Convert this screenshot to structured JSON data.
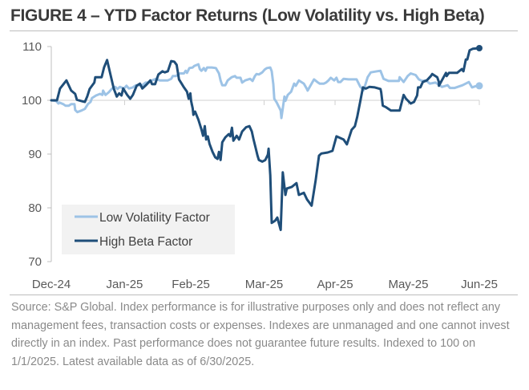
{
  "figure": {
    "title": "FIGURE 4 – YTD Factor Returns (Low Volatility vs. High Beta)",
    "source": "Source: S&P Global. Index performance is for illustrative purposes only and does not reflect any management fees, transaction costs or expenses. Indexes are unmanaged and one cannot invest directly in an index. Past performance does not guarantee future results. Indexed to 100 on 1/1/2025. Latest available data as of 6/30/2025."
  },
  "chart_data": {
    "type": "line",
    "title": "FIGURE 4 – YTD Factor Returns (Low Volatility vs. High Beta)",
    "xlabel": "",
    "ylabel": "",
    "x_unit": "days since 2024-12-31",
    "xlim": [
      0,
      181
    ],
    "ylim": [
      70,
      110
    ],
    "y_ticks": [
      70,
      80,
      90,
      100,
      110
    ],
    "x_ticks": [
      {
        "day": 0,
        "label": "Dec-24"
      },
      {
        "day": 31,
        "label": "Jan-25"
      },
      {
        "day": 59,
        "label": "Feb-25"
      },
      {
        "day": 90,
        "label": "Mar-25"
      },
      {
        "day": 120,
        "label": "Apr-25"
      },
      {
        "day": 151,
        "label": "May-25"
      },
      {
        "day": 181,
        "label": "Jun-25"
      }
    ],
    "baseline": 100,
    "grid": false,
    "legend_position": "bottom-left",
    "series": [
      {
        "name": "Low Volatility Factor",
        "color": "#9dc3e6",
        "end_marker": true,
        "points": [
          [
            0,
            100.0
          ],
          [
            2,
            99.9
          ],
          [
            3,
            99.4
          ],
          [
            3.4,
            99.6
          ],
          [
            5,
            99.3
          ],
          [
            6,
            99.0
          ],
          [
            7.4,
            99.0
          ],
          [
            8.4,
            99.3
          ],
          [
            9.8,
            99.3
          ],
          [
            10.1,
            98.2
          ],
          [
            11,
            97.8
          ],
          [
            12.8,
            98.1
          ],
          [
            14.2,
            98.4
          ],
          [
            15.5,
            99.3
          ],
          [
            16.6,
            99.7
          ],
          [
            17.2,
            100.4
          ],
          [
            18.9,
            100.9
          ],
          [
            20.6,
            101.2
          ],
          [
            21.6,
            101.0
          ],
          [
            21.9,
            101.8
          ],
          [
            22.9,
            101.0
          ],
          [
            24.3,
            101.5
          ],
          [
            25.7,
            102.2
          ],
          [
            27,
            102.5
          ],
          [
            28,
            102.1
          ],
          [
            29,
            102.5
          ],
          [
            30.7,
            102.2
          ],
          [
            31.8,
            102.7
          ],
          [
            32.8,
            102.2
          ],
          [
            34.5,
            102.4
          ],
          [
            35.8,
            102.8
          ],
          [
            36.8,
            102.8
          ],
          [
            38.5,
            102.8
          ],
          [
            39.9,
            103.3
          ],
          [
            41.2,
            103.3
          ],
          [
            42.6,
            103.7
          ],
          [
            44.3,
            104.0
          ],
          [
            45.9,
            103.7
          ],
          [
            47.6,
            103.7
          ],
          [
            49.3,
            103.7
          ],
          [
            50.7,
            104.0
          ],
          [
            51.4,
            104.5
          ],
          [
            52.7,
            104.5
          ],
          [
            54.4,
            105.0
          ],
          [
            56.1,
            105.0
          ],
          [
            56.8,
            105.5
          ],
          [
            57.4,
            105.1
          ],
          [
            58.4,
            106.0
          ],
          [
            59.8,
            106.1
          ],
          [
            60.5,
            106.4
          ],
          [
            62.2,
            106.7
          ],
          [
            62.8,
            105.8
          ],
          [
            63.5,
            105.5
          ],
          [
            64.5,
            106.0
          ],
          [
            65.2,
            105.5
          ],
          [
            65.9,
            106.1
          ],
          [
            67.9,
            106.1
          ],
          [
            69.6,
            106.0
          ],
          [
            70.9,
            105.0
          ],
          [
            71.6,
            103.7
          ],
          [
            72.3,
            102.8
          ],
          [
            73.6,
            102.8
          ],
          [
            74.6,
            103.7
          ],
          [
            76.3,
            104.3
          ],
          [
            77.7,
            104.5
          ],
          [
            78.4,
            104.2
          ],
          [
            80,
            104.2
          ],
          [
            80.7,
            103.3
          ],
          [
            82,
            103.7
          ],
          [
            84.1,
            104.0
          ],
          [
            85.1,
            103.6
          ],
          [
            86.1,
            104.5
          ],
          [
            86.8,
            104.9
          ],
          [
            87.8,
            104.8
          ],
          [
            89.2,
            105.2
          ],
          [
            90.2,
            105.7
          ],
          [
            91.2,
            106.0
          ],
          [
            92.6,
            106.1
          ],
          [
            93.2,
            105.4
          ],
          [
            93.9,
            103.0
          ],
          [
            94.3,
            100.3
          ],
          [
            95.3,
            99.6
          ],
          [
            97,
            98.1
          ],
          [
            97.3,
            96.7
          ],
          [
            98.6,
            100.7
          ],
          [
            99,
            99.9
          ],
          [
            100,
            101.0
          ],
          [
            101.4,
            101.6
          ],
          [
            102.7,
            103.1
          ],
          [
            103.4,
            102.7
          ],
          [
            104.7,
            103.7
          ],
          [
            106.8,
            103.1
          ],
          [
            108.1,
            102.1
          ],
          [
            108.4,
            101.8
          ],
          [
            111.1,
            103.9
          ],
          [
            112.5,
            103.4
          ],
          [
            113.5,
            103.1
          ],
          [
            115.2,
            103.1
          ],
          [
            116.2,
            103.3
          ],
          [
            117.2,
            103.7
          ],
          [
            118.2,
            104.2
          ],
          [
            119.6,
            103.7
          ],
          [
            120.6,
            104.2
          ],
          [
            121.3,
            103.4
          ],
          [
            122.3,
            103.4
          ],
          [
            123.6,
            104.0
          ],
          [
            125.7,
            103.9
          ],
          [
            127,
            103.9
          ],
          [
            129.1,
            103.9
          ],
          [
            130.7,
            102.5
          ],
          [
            132.1,
            101.9
          ],
          [
            133.8,
            104.3
          ],
          [
            135.1,
            105.2
          ],
          [
            137.8,
            105.4
          ],
          [
            139.2,
            105.5
          ],
          [
            140.5,
            104.0
          ],
          [
            142.6,
            103.6
          ],
          [
            145.3,
            103.6
          ],
          [
            147,
            103.6
          ],
          [
            147.3,
            104.3
          ],
          [
            149,
            103.4
          ],
          [
            150.7,
            104.5
          ],
          [
            152,
            105.0
          ],
          [
            154.1,
            104.7
          ],
          [
            155.4,
            103.9
          ],
          [
            156.8,
            103.6
          ],
          [
            158.4,
            103.7
          ],
          [
            160.1,
            103.1
          ],
          [
            162.5,
            103.3
          ],
          [
            165.2,
            102.5
          ],
          [
            167.6,
            102.8
          ],
          [
            168.6,
            102.3
          ],
          [
            170.6,
            102.3
          ],
          [
            173.9,
            102.8
          ],
          [
            176.6,
            103.4
          ],
          [
            177.9,
            102.4
          ],
          [
            179.9,
            102.7
          ],
          [
            181,
            102.7
          ]
        ]
      },
      {
        "name": "High Beta Factor",
        "color": "#1f4e79",
        "end_marker": true,
        "points": [
          [
            0,
            100.0
          ],
          [
            2.4,
            100.0
          ],
          [
            3.7,
            102.2
          ],
          [
            6.4,
            103.7
          ],
          [
            8.4,
            101.8
          ],
          [
            10.1,
            101.2
          ],
          [
            10.8,
            100.1
          ],
          [
            13.2,
            99.8
          ],
          [
            14.2,
            99.7
          ],
          [
            15.2,
            100.7
          ],
          [
            16.2,
            102.1
          ],
          [
            18.2,
            103.3
          ],
          [
            18.6,
            104.3
          ],
          [
            20.3,
            104.3
          ],
          [
            21.3,
            104.3
          ],
          [
            22.3,
            106.1
          ],
          [
            23.6,
            107.5
          ],
          [
            25,
            104.8
          ],
          [
            26.4,
            102.2
          ],
          [
            27.7,
            100.7
          ],
          [
            28.7,
            101.3
          ],
          [
            29.7,
            100.9
          ],
          [
            30.4,
            102.2
          ],
          [
            32.1,
            101.0
          ],
          [
            33.4,
            100.3
          ],
          [
            34.5,
            101.0
          ],
          [
            36.1,
            102.7
          ],
          [
            37.5,
            103.1
          ],
          [
            38.5,
            102.2
          ],
          [
            40.2,
            102.9
          ],
          [
            41.9,
            103.7
          ],
          [
            42.6,
            103.0
          ],
          [
            43.9,
            103.0
          ],
          [
            45.3,
            104.8
          ],
          [
            47,
            105.4
          ],
          [
            48,
            105.2
          ],
          [
            49.3,
            105.4
          ],
          [
            50.7,
            107.3
          ],
          [
            52,
            107.2
          ],
          [
            53,
            106.6
          ],
          [
            54,
            103.9
          ],
          [
            55.1,
            103.1
          ],
          [
            56.1,
            102.4
          ],
          [
            57.4,
            101.6
          ],
          [
            58.1,
            100.3
          ],
          [
            58.8,
            101.3
          ],
          [
            59.1,
            99.9
          ],
          [
            59.8,
            98.5
          ],
          [
            60.1,
            97.3
          ],
          [
            60.8,
            97.9
          ],
          [
            62.2,
            96.4
          ],
          [
            63.5,
            94.6
          ],
          [
            64.2,
            93.4
          ],
          [
            64.9,
            95.2
          ],
          [
            65.5,
            92.7
          ],
          [
            66.2,
            93.3
          ],
          [
            66.9,
            91.9
          ],
          [
            68.2,
            90.4
          ],
          [
            69.3,
            89.4
          ],
          [
            70.3,
            89.1
          ],
          [
            70.9,
            90.4
          ],
          [
            71.6,
            88.9
          ],
          [
            72.3,
            92.2
          ],
          [
            73.6,
            93.1
          ],
          [
            75,
            93.7
          ],
          [
            75.7,
            93.3
          ],
          [
            76.4,
            94.9
          ],
          [
            77,
            92.5
          ],
          [
            78.4,
            93.4
          ],
          [
            79.4,
            92.7
          ],
          [
            80.7,
            94.2
          ],
          [
            82.4,
            95.0
          ],
          [
            83.8,
            95.2
          ],
          [
            84.8,
            94.2
          ],
          [
            85.5,
            92.8
          ],
          [
            86.5,
            91.0
          ],
          [
            87.2,
            89.7
          ],
          [
            87.8,
            88.9
          ],
          [
            89.2,
            88.6
          ],
          [
            90.5,
            88.9
          ],
          [
            91.6,
            89.9
          ],
          [
            91.9,
            91.0
          ],
          [
            92.6,
            86.1
          ],
          [
            93.2,
            77.2
          ],
          [
            94.6,
            77.6
          ],
          [
            95.6,
            78.2
          ],
          [
            97,
            75.9
          ],
          [
            97.9,
            86.6
          ],
          [
            99,
            82.4
          ],
          [
            99.6,
            83.6
          ],
          [
            101.7,
            83.9
          ],
          [
            103.7,
            84.6
          ],
          [
            104.7,
            82.4
          ],
          [
            106.8,
            82.8
          ],
          [
            108.1,
            81.6
          ],
          [
            110.1,
            80.4
          ],
          [
            111.8,
            85.1
          ],
          [
            113.2,
            89.7
          ],
          [
            114.2,
            90.1
          ],
          [
            116.9,
            90.3
          ],
          [
            118.9,
            90.6
          ],
          [
            120.6,
            93.3
          ],
          [
            123.6,
            92.7
          ],
          [
            125,
            91.8
          ],
          [
            127,
            94.5
          ],
          [
            128.4,
            95.2
          ],
          [
            129.4,
            97.0
          ],
          [
            130.7,
            99.9
          ],
          [
            131.8,
            102.4
          ],
          [
            132.8,
            102.2
          ],
          [
            133.1,
            102.2
          ],
          [
            134.5,
            102.5
          ],
          [
            136.8,
            102.4
          ],
          [
            139.2,
            102.1
          ],
          [
            139.5,
            101.5
          ],
          [
            140.2,
            99.0
          ],
          [
            141.6,
            98.7
          ],
          [
            143.6,
            98.1
          ],
          [
            145.6,
            98.1
          ],
          [
            147.3,
            98.1
          ],
          [
            149,
            101.0
          ],
          [
            150,
            100.3
          ],
          [
            152,
            99.4
          ],
          [
            153.4,
            99.7
          ],
          [
            153.7,
            100.0
          ],
          [
            154.7,
            100.9
          ],
          [
            155.1,
            102.4
          ],
          [
            156.1,
            102.4
          ],
          [
            157.1,
            103.4
          ],
          [
            158.8,
            103.7
          ],
          [
            160.5,
            104.5
          ],
          [
            161.1,
            104.9
          ],
          [
            163.2,
            104.3
          ],
          [
            163.9,
            103.4
          ],
          [
            163.9,
            102.7
          ],
          [
            166.9,
            105.1
          ],
          [
            167.2,
            104.5
          ],
          [
            168.2,
            105.1
          ],
          [
            171.6,
            105.1
          ],
          [
            173.6,
            105.8
          ],
          [
            174.3,
            105.4
          ],
          [
            175.3,
            107.6
          ],
          [
            175.9,
            107.6
          ],
          [
            176.9,
            109.3
          ],
          [
            178.3,
            109.6
          ],
          [
            181,
            109.7
          ]
        ]
      }
    ]
  }
}
